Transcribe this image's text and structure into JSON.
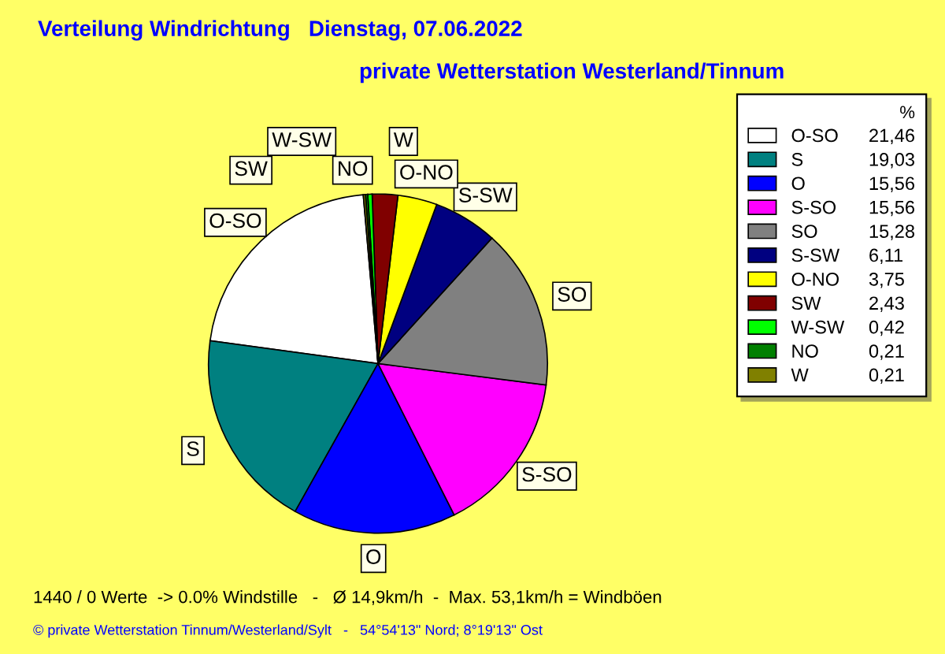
{
  "chart_data": {
    "type": "pie",
    "title": "Verteilung Windrichtung   Dienstag, 07.06.2022",
    "subtitle": "private Wetterstation Westerland/Tinnum",
    "categories": [
      "O-SO",
      "S",
      "O",
      "S-SO",
      "SO",
      "S-SW",
      "O-NO",
      "SW",
      "W-SW",
      "NO",
      "W"
    ],
    "values": [
      21.46,
      19.03,
      15.56,
      15.56,
      15.28,
      6.11,
      3.75,
      2.43,
      0.42,
      0.21,
      0.21
    ],
    "value_labels": [
      "21,46",
      "19,03",
      "15,56",
      "15,56",
      "15,28",
      "6,11",
      "3,75",
      "2,43",
      "0,42",
      "0,21",
      "0,21"
    ],
    "colors": [
      "#ffffff",
      "#008080",
      "#0000ff",
      "#ff00ff",
      "#808080",
      "#000080",
      "#ffff00",
      "#800000",
      "#00ff00",
      "#008000",
      "#808000"
    ],
    "legend": "right",
    "legend_title": "%",
    "annotations": [
      "1440 / 0 Werte  -> 0.0% Windstille   -   Ø 14,9km/h  -  Max. 53,1km/h = Windböen",
      "© private Wetterstation Tinnum/Westerland/Sylt   -   54°54'13\" Nord; 8°19'13\" Ost"
    ]
  }
}
